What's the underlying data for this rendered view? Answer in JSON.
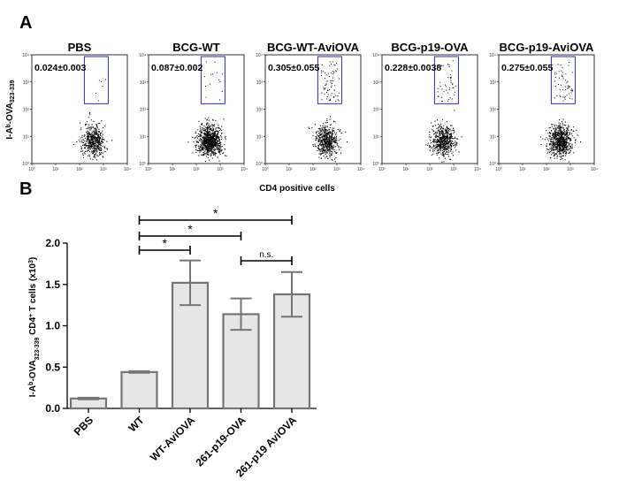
{
  "panel_a_letter": "A",
  "panel_b_letter": "B",
  "flow_panels": [
    {
      "title": "PBS",
      "gate_value": "0.024±0.003",
      "density": 0.55,
      "gate_events": 6
    },
    {
      "title": "BCG-WT",
      "gate_value": "0.087±0.002",
      "density": 1.0,
      "gate_events": 14
    },
    {
      "title": "BCG-WT-AviOVA",
      "gate_value": "0.305±0.055",
      "density": 0.6,
      "gate_events": 70
    },
    {
      "title": "BCG-p19-OVA",
      "gate_value": "0.228±0.0038",
      "density": 0.6,
      "gate_events": 45
    },
    {
      "title": "BCG-p19-AviOVA",
      "gate_value": "0.275±0.055",
      "density": 0.8,
      "gate_events": 55
    }
  ],
  "flow_y_label": "I-Aᵇ-OVA",
  "flow_y_label_sub": "323-339",
  "flow_x_label": "CD4 positive cells",
  "flow_axis_ticks": [
    "10⁰",
    "10¹",
    "10²",
    "10³",
    "10⁴"
  ],
  "flow_axis_tick_exps": [
    0,
    1,
    2,
    3,
    4
  ],
  "chart_data": {
    "type": "bar",
    "categories": [
      "PBS",
      "WT",
      "WT-AviOVA",
      "261-p19-OVA",
      "261-p19 AviOVA"
    ],
    "values": [
      0.12,
      0.44,
      1.52,
      1.14,
      1.38
    ],
    "errors": [
      0.01,
      0.01,
      0.27,
      0.19,
      0.27
    ],
    "ylabel_parts": [
      "I-A",
      "b",
      "-OVA",
      "323-339",
      " CD4",
      "+",
      " T cells (x10",
      "3",
      ")"
    ],
    "ylim": [
      0,
      2.0
    ],
    "yticks": [
      "0.0",
      "0.5",
      "1.0",
      "1.5",
      "2.0"
    ],
    "ytick_values": [
      0.0,
      0.5,
      1.0,
      1.5,
      2.0
    ],
    "bar_color": "#e6e6e6",
    "edge_color": "#757575",
    "significance": [
      {
        "from": 1,
        "to": 4,
        "label": "*"
      },
      {
        "from": 1,
        "to": 3,
        "label": "*"
      },
      {
        "from": 1,
        "to": 2,
        "label": "*"
      },
      {
        "from": 3,
        "to": 4,
        "label": "n.s."
      }
    ]
  }
}
